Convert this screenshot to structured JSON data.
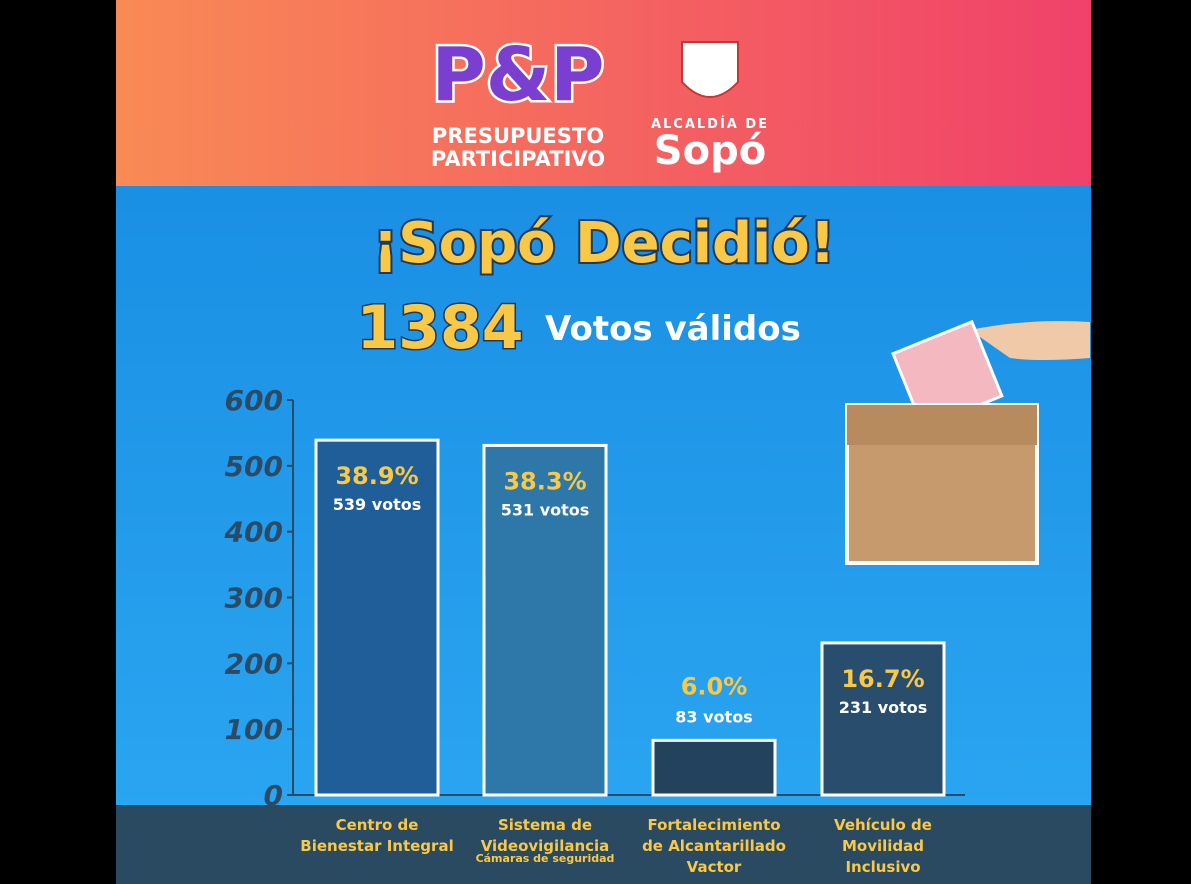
{
  "header": {
    "logo_mark": "P&P",
    "program": [
      "PRESUPUESTO",
      "PARTICIPATIVO"
    ],
    "city_prefix": "ALCALDÍA DE",
    "city": "Sopó"
  },
  "headline": "¡Sopó Decidió!",
  "total_votes": "1384",
  "total_label": "Votos válidos",
  "chart_data": {
    "type": "bar",
    "categories": [
      [
        "Centro de",
        "Bienestar Integral"
      ],
      [
        "Sistema de",
        "Videovigilancia"
      ],
      [
        "Fortalecimiento",
        "de Alcantarillado",
        "Vactor"
      ],
      [
        "Vehículo de",
        "Movilidad",
        "Inclusivo"
      ]
    ],
    "category_notes": [
      "Cámaras de seguridad"
    ],
    "values": [
      539,
      531,
      83,
      231
    ],
    "value_labels": [
      "539 votos",
      "531 votos",
      "83 votos",
      "231 votos"
    ],
    "percent_labels": [
      "38.9%",
      "38.3%",
      "6.0%",
      "16.7%"
    ],
    "colors": [
      "#1f5e98",
      "#2e77a9",
      "#22425e",
      "#294d6d"
    ],
    "ylim": [
      0,
      600
    ],
    "yticks": [
      0,
      100,
      200,
      300,
      400,
      500,
      600
    ],
    "grid": false
  }
}
